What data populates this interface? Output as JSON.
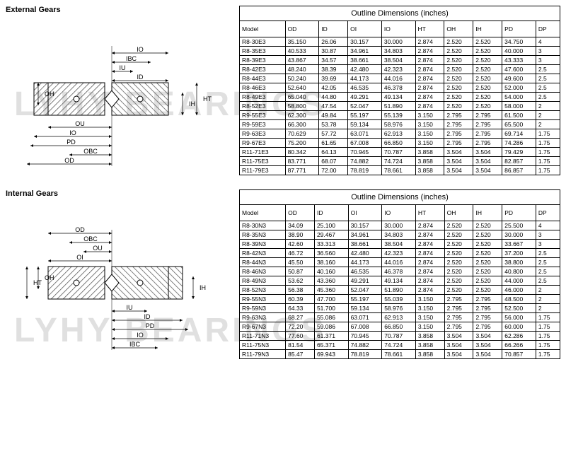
{
  "watermark_text": "LYHY BEARINGS",
  "sections": [
    {
      "title": "External Gears",
      "table_title": "Outline Dimensions (inches)",
      "columns": [
        "Model",
        "OD",
        "ID",
        "OI",
        "IO",
        "HT",
        "OH",
        "IH",
        "PD",
        "DP"
      ],
      "rows": [
        [
          "R8-30E3",
          "35.150",
          "26.06",
          "30.157",
          "30.000",
          "2.874",
          "2.520",
          "2.520",
          "34.750",
          "4"
        ],
        [
          "R8-35E3",
          "40.533",
          "30.87",
          "34.961",
          "34.803",
          "2.874",
          "2.520",
          "2.520",
          "40.000",
          "3"
        ],
        [
          "R8-39E3",
          "43.867",
          "34.57",
          "38.661",
          "38.504",
          "2.874",
          "2.520",
          "2.520",
          "43.333",
          "3"
        ],
        [
          "R8-42E3",
          "48.240",
          "38.39",
          "42.480",
          "42.323",
          "2.874",
          "2.520",
          "2.520",
          "47.600",
          "2.5"
        ],
        [
          "R8-44E3",
          "50.240",
          "39.69",
          "44.173",
          "44.016",
          "2.874",
          "2.520",
          "2.520",
          "49.600",
          "2.5"
        ],
        [
          "R8-46E3",
          "52.640",
          "42.05",
          "46.535",
          "46.378",
          "2.874",
          "2.520",
          "2.520",
          "52.000",
          "2.5"
        ],
        [
          "R8-49E3",
          "65.040",
          "44.80",
          "49.291",
          "49.134",
          "2.874",
          "2.520",
          "2.520",
          "54.000",
          "2.5"
        ],
        [
          "R8-52E3",
          "58.800",
          "47.54",
          "52.047",
          "51.890",
          "2.874",
          "2.520",
          "2.520",
          "58.000",
          "2"
        ],
        [
          "R9-55E3",
          "62.300",
          "49.84",
          "55.197",
          "55.139",
          "3.150",
          "2.795",
          "2.795",
          "61.500",
          "2"
        ],
        [
          "R9-59E3",
          "66.300",
          "53.78",
          "59.134",
          "58.976",
          "3.150",
          "2.795",
          "2.795",
          "65.500",
          "2"
        ],
        [
          "R9-63E3",
          "70.629",
          "57.72",
          "63.071",
          "62.913",
          "3.150",
          "2.795",
          "2.795",
          "69.714",
          "1.75"
        ],
        [
          "R9-67E3",
          "75.200",
          "61.65",
          "67.008",
          "66.850",
          "3.150",
          "2.795",
          "2.795",
          "74.286",
          "1.75"
        ],
        [
          "R11-71E3",
          "80.342",
          "64.13",
          "70.945",
          "70.787",
          "3.858",
          "3.504",
          "3.504",
          "79.429",
          "1.75"
        ],
        [
          "R11-75E3",
          "83.771",
          "68.07",
          "74.882",
          "74.724",
          "3.858",
          "3.504",
          "3.504",
          "82.857",
          "1.75"
        ],
        [
          "R11-79E3",
          "87.771",
          "72.00",
          "78.819",
          "78.661",
          "3.858",
          "3.504",
          "3.504",
          "86.857",
          "1.75"
        ]
      ],
      "diagram_labels": [
        "IO",
        "IBC",
        "IU",
        "ID",
        "OH",
        "IH",
        "HT",
        "OU",
        "IO",
        "PD",
        "OBC",
        "OD"
      ]
    },
    {
      "title": "Internal Gears",
      "table_title": "Outline Dimensions (inches)",
      "columns": [
        "Model",
        "OD",
        "ID",
        "OI",
        "IO",
        "HT",
        "OH",
        "IH",
        "PD",
        "DP"
      ],
      "rows": [
        [
          "R8-30N3",
          "34.09",
          "25.100",
          "30.157",
          "30.000",
          "2.874",
          "2.520",
          "2.520",
          "25.500",
          "4"
        ],
        [
          "R8-35N3",
          "38.90",
          "29.467",
          "34.961",
          "34.803",
          "2.874",
          "2.520",
          "2.520",
          "30.000",
          "3"
        ],
        [
          "R8-39N3",
          "42.60",
          "33.313",
          "38.661",
          "38.504",
          "2.874",
          "2.520",
          "2.520",
          "33.667",
          "3"
        ],
        [
          "R8-42N3",
          "46.72",
          "36.560",
          "42.480",
          "42.323",
          "2.874",
          "2.520",
          "2.520",
          "37.200",
          "2.5"
        ],
        [
          "R8-44N3",
          "45.50",
          "38.160",
          "44.173",
          "44.016",
          "2.874",
          "2.520",
          "2.520",
          "38.800",
          "2.5"
        ],
        [
          "R8-46N3",
          "50.87",
          "40.160",
          "46.535",
          "46.378",
          "2.874",
          "2.520",
          "2.520",
          "40.800",
          "2.5"
        ],
        [
          "R8-49N3",
          "53.62",
          "43.360",
          "49.291",
          "49.134",
          "2.874",
          "2.520",
          "2.520",
          "44.000",
          "2.5"
        ],
        [
          "R8-52N3",
          "56.38",
          "45.360",
          "52.047",
          "51.890",
          "2.874",
          "2.520",
          "2.520",
          "46.000",
          "2"
        ],
        [
          "R9-55N3",
          "60.39",
          "47.700",
          "55.197",
          "55.039",
          "3.150",
          "2.795",
          "2.795",
          "48.500",
          "2"
        ],
        [
          "R9-59N3",
          "64.33",
          "51.700",
          "59.134",
          "58.976",
          "3.150",
          "2.795",
          "2.795",
          "52.500",
          "2"
        ],
        [
          "R9-63N3",
          "68.27",
          "55.086",
          "63.071",
          "62.913",
          "3.150",
          "2.795",
          "2.795",
          "56.000",
          "1.75"
        ],
        [
          "R9-67N3",
          "72.20",
          "59.086",
          "67.008",
          "66.850",
          "3.150",
          "2.795",
          "2.795",
          "60.000",
          "1.75"
        ],
        [
          "R11-71N3",
          "77.60",
          "61.371",
          "70.945",
          "70.787",
          "3.858",
          "3.504",
          "3.504",
          "62.286",
          "1.75"
        ],
        [
          "R11-75N3",
          "81.54",
          "65.371",
          "74.882",
          "74.724",
          "3.858",
          "3.504",
          "3.504",
          "66.266",
          "1.75"
        ],
        [
          "R11-79N3",
          "85.47",
          "69.943",
          "78.819",
          "78.661",
          "3.858",
          "3.504",
          "3.504",
          "70.857",
          "1.75"
        ]
      ],
      "diagram_labels": [
        "OD",
        "OBC",
        "OU",
        "OI",
        "OH",
        "HT",
        "IH",
        "IU",
        "ID",
        "PD",
        "IO",
        "IBC"
      ]
    }
  ],
  "colors": {
    "border": "#000000",
    "hatch": "#888888",
    "bg": "#ffffff",
    "watermark": "#e0e0e0"
  }
}
